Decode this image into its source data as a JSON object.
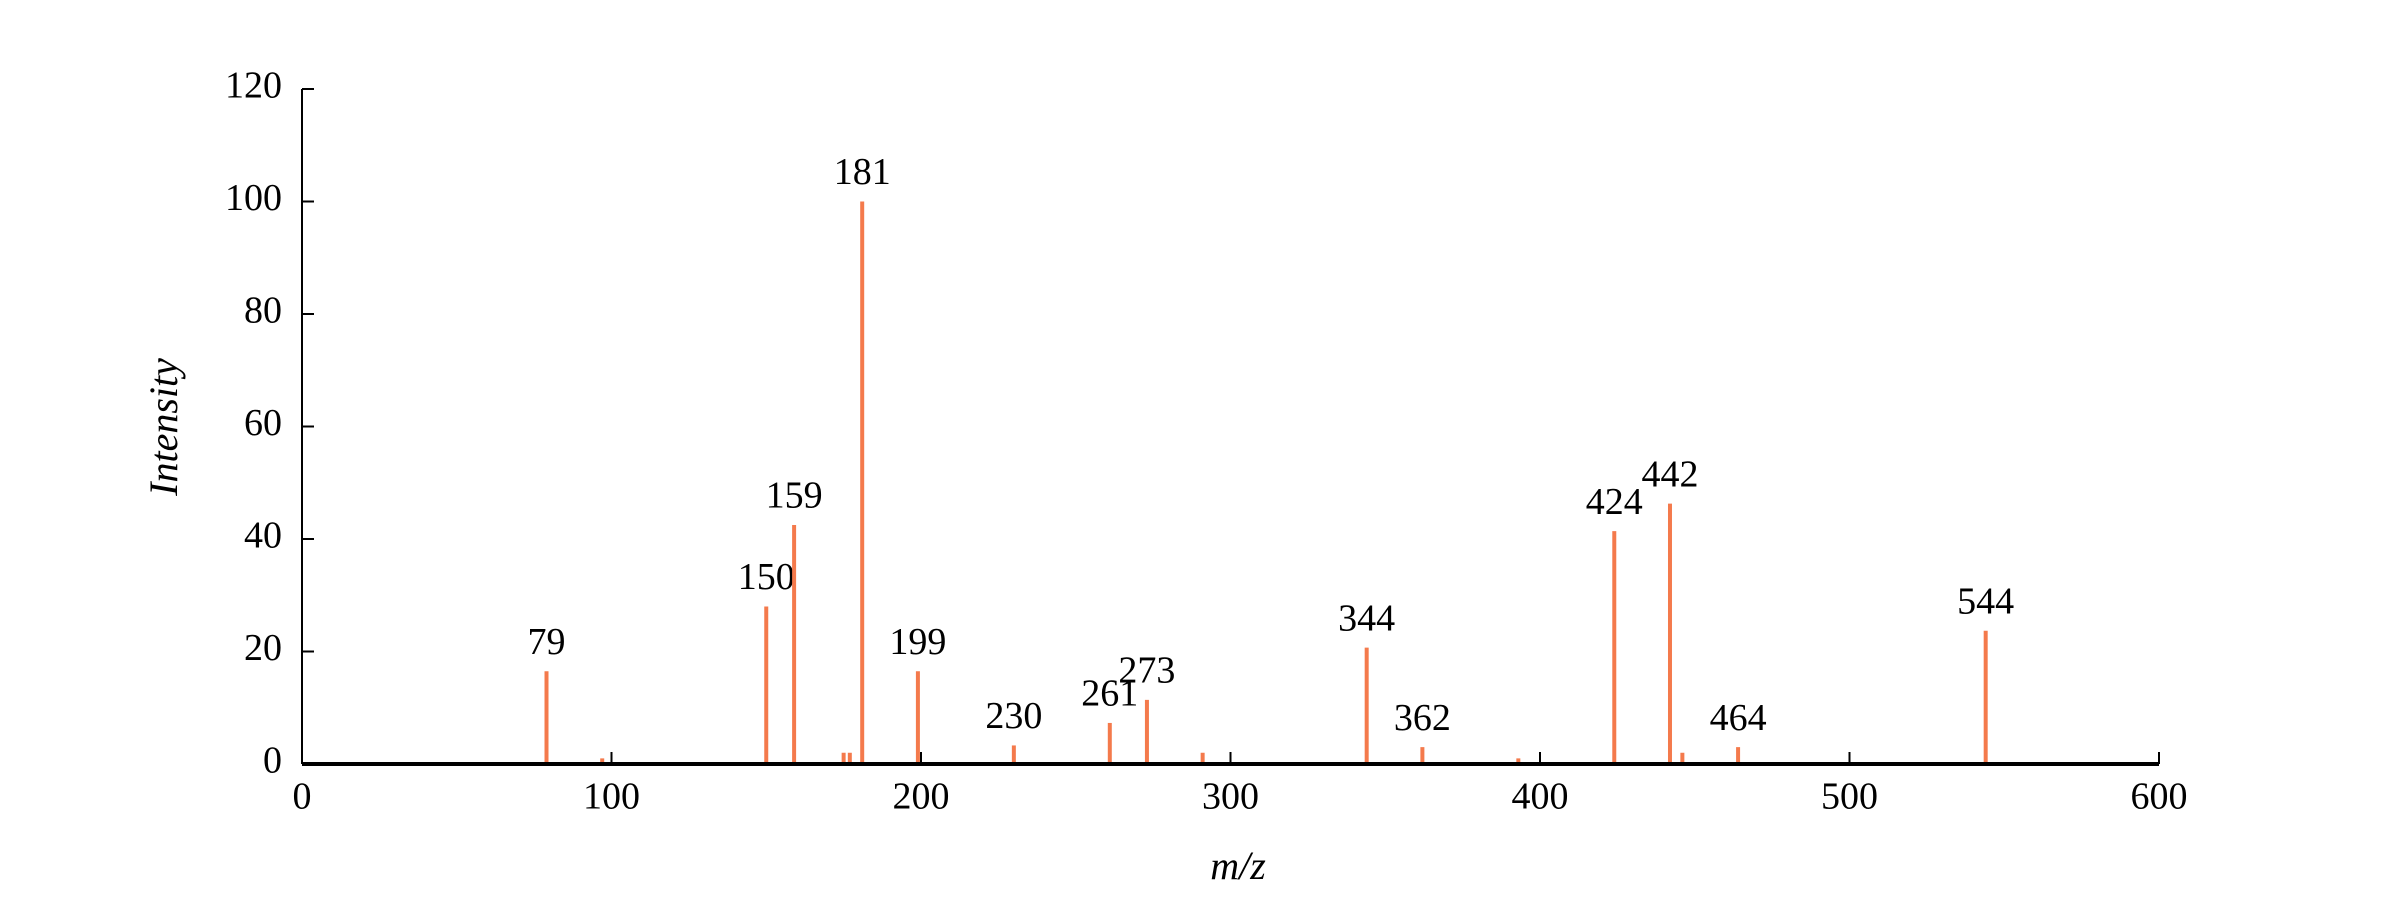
{
  "chart_data": {
    "type": "stem",
    "xlabel": "m/z",
    "ylabel": "Intensity",
    "x": [
      79,
      97,
      150,
      159,
      175,
      177,
      181,
      199,
      230,
      261,
      273,
      291,
      344,
      362,
      393,
      424,
      442,
      446,
      464,
      544
    ],
    "values": [
      16.5,
      1,
      28,
      42.5,
      2,
      2,
      100,
      16.5,
      3.3,
      7.3,
      11.4,
      2,
      20.7,
      3,
      1,
      41.4,
      46.3,
      2,
      3,
      23.7
    ],
    "peak_labels": [
      "79",
      null,
      "150",
      "159",
      null,
      null,
      "181",
      "199",
      "230",
      "261",
      "273",
      null,
      "344",
      "362",
      null,
      "424",
      "442",
      null,
      "464",
      "544"
    ],
    "color": "#f47a4c",
    "xlim": [
      0,
      600
    ],
    "xticks": [
      0,
      100,
      200,
      300,
      400,
      500,
      600
    ],
    "ylim": [
      0,
      120
    ],
    "yticks": [
      0,
      20,
      40,
      60,
      80,
      100,
      120
    ]
  }
}
